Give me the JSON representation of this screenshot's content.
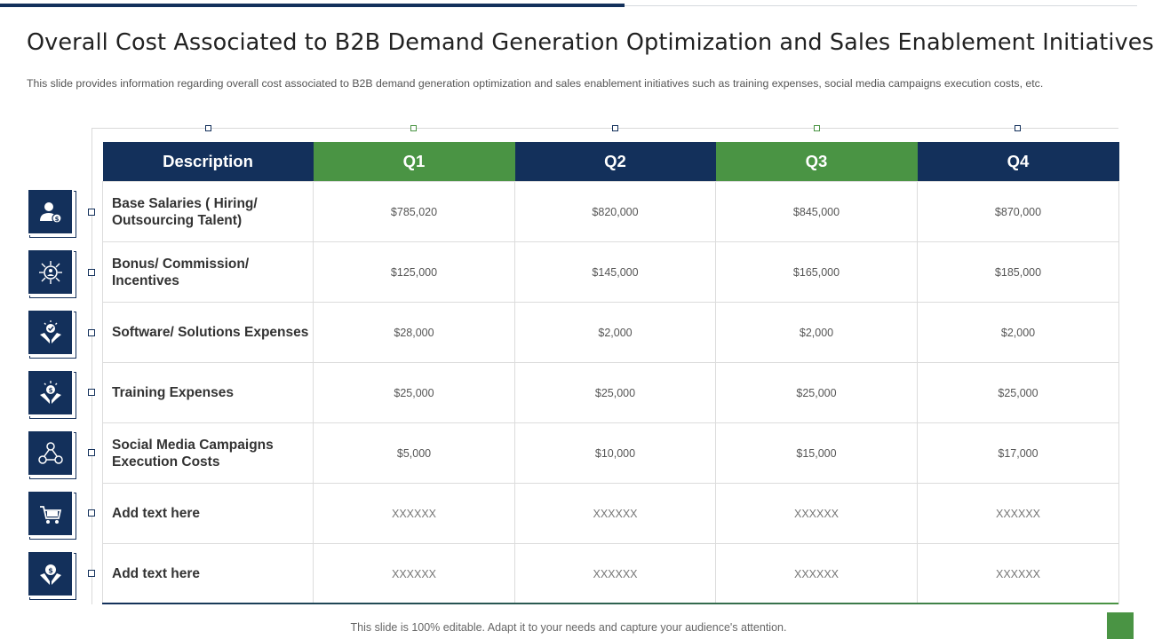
{
  "title": "Overall Cost Associated to B2B Demand Generation Optimization and Sales Enablement Initiatives",
  "subtitle": "This slide provides information regarding overall cost associated to B2B demand generation optimization and sales enablement initiatives such as training expenses, social media campaigns execution costs, etc.",
  "table": {
    "headers": [
      "Description",
      "Q1",
      "Q2",
      "Q3",
      "Q4"
    ],
    "rows": [
      {
        "desc": "Base Salaries ( Hiring/ Outsourcing Talent)",
        "values": [
          "$785,020",
          "$820,000",
          "$845,000",
          "$870,000"
        ],
        "icon": "employee-salary-icon"
      },
      {
        "desc": "Bonus/ Commission/ Incentives",
        "values": [
          "$125,000",
          "$145,000",
          "$165,000",
          "$185,000"
        ],
        "icon": "incentive-network-icon"
      },
      {
        "desc": "Software/ Solutions Expenses",
        "values": [
          "$28,000",
          "$2,000",
          "$2,000",
          "$2,000"
        ],
        "icon": "hand-check-icon"
      },
      {
        "desc": "Training Expenses",
        "values": [
          "$25,000",
          "$25,000",
          "$25,000",
          "$25,000"
        ],
        "icon": "hand-dollar-icon"
      },
      {
        "desc": "Social Media Campaigns Execution Costs",
        "values": [
          "$5,000",
          "$10,000",
          "$15,000",
          "$17,000"
        ],
        "icon": "social-network-icon"
      },
      {
        "desc": "Add text here",
        "values": [
          "XXXXXX",
          "XXXXXX",
          "XXXXXX",
          "XXXXXX"
        ],
        "icon": "shopping-cart-icon"
      },
      {
        "desc": "Add text here",
        "values": [
          "XXXXXX",
          "XXXXXX",
          "XXXXXX",
          "XXXXXX"
        ],
        "icon": "hands-dollar-icon"
      }
    ]
  },
  "footer": "This slide is 100% editable. Adapt it to your needs and capture your audience's attention.",
  "colors": {
    "navy": "#13305b",
    "green": "#4a9444"
  }
}
